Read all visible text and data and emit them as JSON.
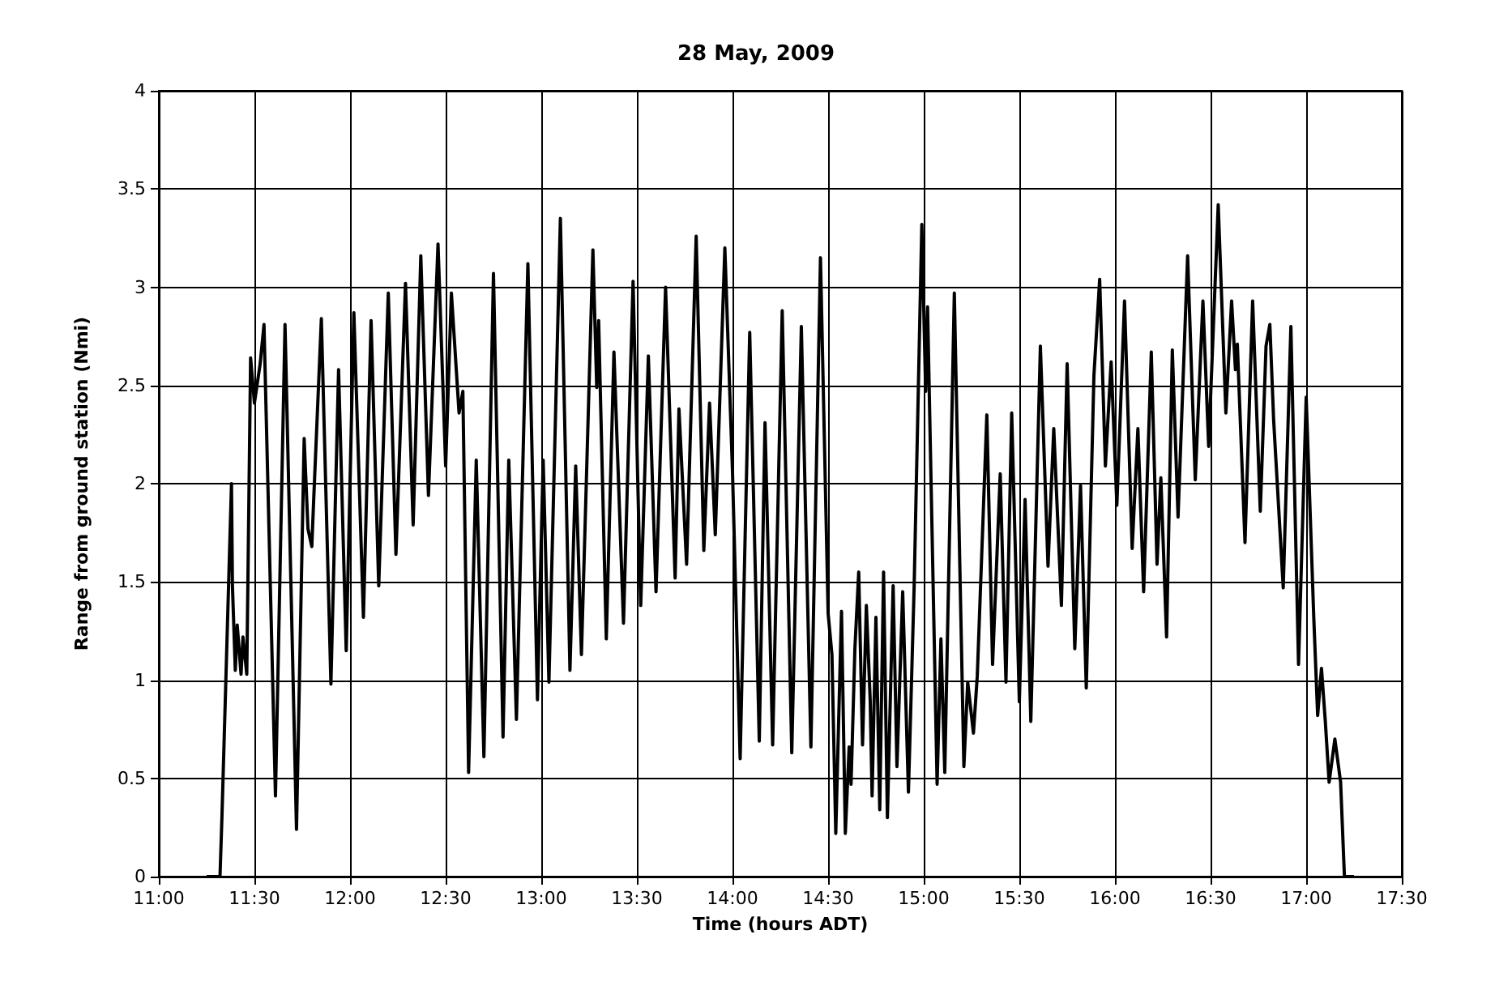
{
  "chart_data": {
    "type": "line",
    "title": "28 May, 2009",
    "xlabel": "Time (hours ADT)",
    "ylabel": "Range from ground station (Nmi)",
    "xlim": [
      11,
      17.5
    ],
    "xticks": [
      {
        "value": 11,
        "label": "11:00"
      },
      {
        "value": 11.5,
        "label": "11:30"
      },
      {
        "value": 12,
        "label": "12:00"
      },
      {
        "value": 12.5,
        "label": "12:30"
      },
      {
        "value": 13,
        "label": "13:00"
      },
      {
        "value": 13.5,
        "label": "13:30"
      },
      {
        "value": 14,
        "label": "14:00"
      },
      {
        "value": 14.5,
        "label": "14:30"
      },
      {
        "value": 15,
        "label": "15:00"
      },
      {
        "value": 15.5,
        "label": "15:30"
      },
      {
        "value": 16,
        "label": "16:00"
      },
      {
        "value": 16.5,
        "label": "16:30"
      },
      {
        "value": 17,
        "label": "17:00"
      },
      {
        "value": 17.5,
        "label": "17:30"
      }
    ],
    "ylim": [
      0,
      4
    ],
    "yticks": [
      0,
      0.5,
      1,
      1.5,
      2,
      2.5,
      3,
      3.5,
      4
    ],
    "grid": true,
    "x": [
      11.25,
      11.32,
      11.33,
      11.38,
      11.385,
      11.4,
      11.41,
      11.43,
      11.44,
      11.46,
      11.48,
      11.5,
      11.53,
      11.55,
      11.61,
      11.66,
      11.72,
      11.76,
      11.78,
      11.8,
      11.81,
      11.85,
      11.9,
      11.94,
      11.98,
      12.02,
      12.07,
      12.11,
      12.15,
      12.2,
      12.24,
      12.29,
      12.33,
      12.37,
      12.41,
      12.46,
      12.5,
      12.53,
      12.57,
      12.59,
      12.62,
      12.66,
      12.7,
      12.75,
      12.8,
      12.83,
      12.87,
      12.93,
      12.98,
      13.01,
      13.04,
      13.1,
      13.15,
      13.18,
      13.21,
      13.27,
      13.29,
      13.3,
      13.34,
      13.38,
      13.43,
      13.48,
      13.52,
      13.56,
      13.6,
      13.65,
      13.7,
      13.72,
      13.76,
      13.81,
      13.85,
      13.88,
      13.91,
      13.96,
      14,
      14.04,
      14.09,
      14.14,
      14.17,
      14.21,
      14.26,
      14.31,
      14.36,
      14.41,
      14.46,
      14.5,
      14.52,
      14.54,
      14.57,
      14.59,
      14.61,
      14.62,
      14.64,
      14.66,
      14.68,
      14.7,
      14.72,
      14.73,
      14.75,
      14.77,
      14.79,
      14.81,
      14.84,
      14.86,
      14.89,
      14.92,
      14.95,
      14.99,
      15.01,
      15.02,
      15.07,
      15.09,
      15.11,
      15.16,
      15.21,
      15.23,
      15.26,
      15.28,
      15.33,
      15.36,
      15.4,
      15.43,
      15.46,
      15.5,
      15.53,
      15.56,
      15.61,
      15.65,
      15.68,
      15.72,
      15.75,
      15.79,
      15.82,
      15.85,
      15.89,
      15.92,
      15.95,
      15.98,
      16.01,
      16.05,
      16.09,
      16.12,
      16.15,
      16.19,
      16.22,
      16.24,
      16.27,
      16.3,
      16.33,
      16.38,
      16.42,
      16.46,
      16.49,
      16.54,
      16.58,
      16.61,
      16.63,
      16.64,
      16.68,
      16.72,
      16.76,
      16.79,
      16.81,
      16.83,
      16.88,
      16.92,
      16.96,
      17,
      17.04,
      17.06,
      17.08,
      17.1,
      17.12,
      17.15,
      17.18,
      17.2,
      17.25
    ],
    "values": [
      0,
      0,
      0.3,
      2,
      1.48,
      1.05,
      1.28,
      1.03,
      1.22,
      1.03,
      2.64,
      2.41,
      2.61,
      2.81,
      0.41,
      2.81,
      0.24,
      2.23,
      1.77,
      1.68,
      1.92,
      2.84,
      0.98,
      2.58,
      1.15,
      2.87,
      1.32,
      2.83,
      1.48,
      2.97,
      1.64,
      3.02,
      1.79,
      3.16,
      1.94,
      3.22,
      2.09,
      2.97,
      2.36,
      2.47,
      0.53,
      2.12,
      0.61,
      3.07,
      0.71,
      2.12,
      0.8,
      3.12,
      0.9,
      2.12,
      0.99,
      3.35,
      1.05,
      2.09,
      1.13,
      3.19,
      2.49,
      2.83,
      1.21,
      2.67,
      1.29,
      3.03,
      1.38,
      2.65,
      1.45,
      3,
      1.52,
      2.38,
      1.59,
      3.26,
      1.66,
      2.41,
      1.74,
      3.2,
      2.06,
      0.6,
      2.77,
      0.69,
      2.31,
      0.67,
      2.88,
      0.63,
      2.8,
      0.66,
      3.15,
      1.34,
      1.13,
      0.22,
      1.35,
      0.22,
      0.66,
      0.47,
      1.16,
      1.55,
      0.67,
      1.38,
      0.9,
      0.41,
      1.32,
      0.34,
      1.55,
      0.3,
      1.48,
      0.56,
      1.45,
      0.43,
      1.48,
      3.32,
      2.47,
      2.9,
      0.47,
      1.21,
      0.53,
      2.97,
      0.56,
      0.99,
      0.73,
      1.02,
      2.35,
      1.08,
      2.05,
      0.99,
      2.36,
      0.89,
      1.92,
      0.79,
      2.7,
      1.58,
      2.28,
      1.38,
      2.61,
      1.16,
      1.99,
      0.96,
      2.55,
      3.04,
      2.09,
      2.62,
      1.89,
      2.93,
      1.67,
      2.28,
      1.45,
      2.67,
      1.59,
      2.03,
      1.22,
      2.68,
      1.83,
      3.16,
      2.02,
      2.93,
      2.19,
      3.42,
      2.36,
      2.93,
      2.58,
      2.71,
      1.7,
      2.93,
      1.86,
      2.7,
      2.81,
      2.32,
      1.47,
      2.8,
      1.08,
      2.44,
      1.31,
      0.82,
      1.06,
      0.79,
      0.48,
      0.7,
      0.48,
      0,
      0
    ],
    "color": "#000000"
  }
}
